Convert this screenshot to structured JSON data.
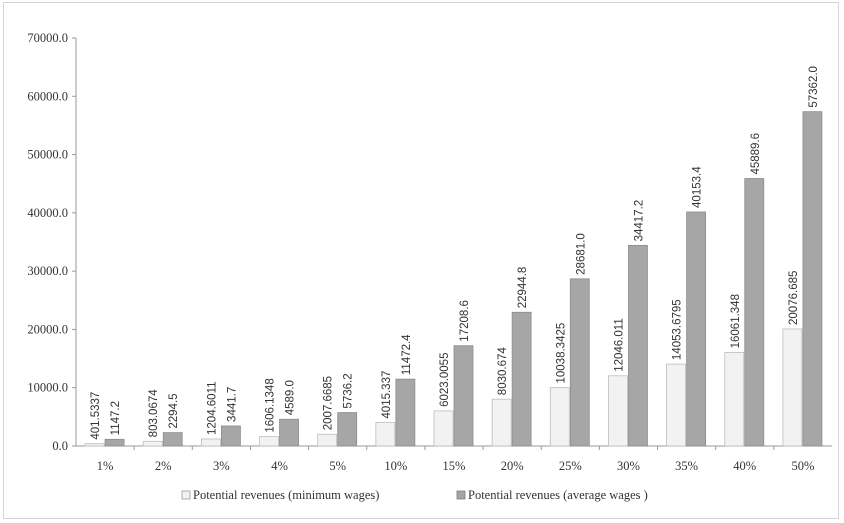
{
  "chart_data": {
    "type": "bar",
    "title": "",
    "xlabel": "",
    "ylabel": "",
    "categories": [
      "1%",
      "2%",
      "3%",
      "4%",
      "5%",
      "10%",
      "15%",
      "20%",
      "25%",
      "30%",
      "35%",
      "40%",
      "50%"
    ],
    "series": [
      {
        "name": "Potential revenues (minimum wages)",
        "color": "#f2f2f2",
        "values": [
          401.5337,
          803.0674,
          1204.6011,
          1606.1348,
          2007.6685,
          4015.337,
          6023.0055,
          8030.674,
          10038.3425,
          12046.011,
          14053.6795,
          16061.348,
          20076.685
        ],
        "labels": [
          "401.5337",
          "803.0674",
          "1204.6011",
          "1606.1348",
          "2007.6685",
          "4015.337",
          "6023.0055",
          "8030.674",
          "10038.3425",
          "12046.011",
          "14053.6795",
          "16061.348",
          "20076.685"
        ]
      },
      {
        "name": "Potential revenues (average wages )",
        "color": "#a6a6a6",
        "values": [
          1147.2,
          2294.5,
          3441.7,
          4589.0,
          5736.2,
          11472.4,
          17208.6,
          22944.8,
          28681.0,
          34417.2,
          40153.4,
          45889.6,
          57362.0
        ],
        "labels": [
          "1147.2",
          "2294.5",
          "3441.7",
          "4589.0",
          "5736.2",
          "11472.4",
          "17208.6",
          "22944.8",
          "28681.0",
          "34417.2",
          "40153.4",
          "45889.6",
          "57362.0"
        ]
      }
    ],
    "ylim": [
      0,
      70000
    ],
    "yticks": [
      0,
      10000,
      20000,
      30000,
      40000,
      50000,
      60000,
      70000
    ],
    "ytick_labels": [
      "0.0",
      "10000.0",
      "20000.0",
      "30000.0",
      "40000.0",
      "50000.0",
      "60000.0",
      "70000.0"
    ],
    "grid": false,
    "legend_position": "bottom"
  }
}
